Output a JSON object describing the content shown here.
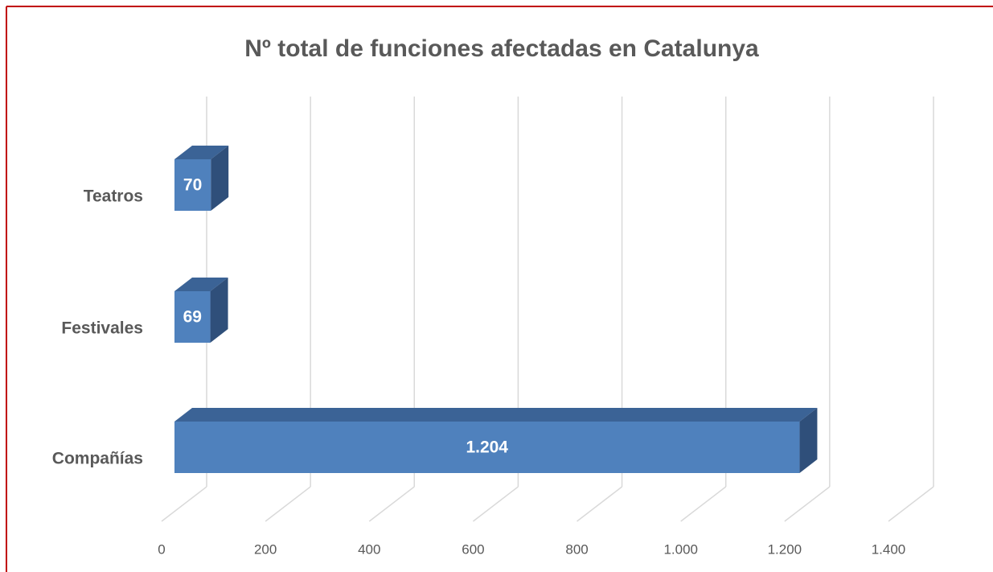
{
  "chart_data": {
    "type": "bar3d_horizontal",
    "title": "Nº total de funciones afectadas en Catalunya",
    "categories": [
      "Teatros",
      "Festivales",
      "Compañías"
    ],
    "values": [
      70,
      69,
      1204
    ],
    "value_labels": [
      "70",
      "69",
      "1.204"
    ],
    "color": "#4f81bd",
    "xlim": [
      0,
      1400
    ],
    "xticks": [
      0,
      200,
      400,
      600,
      800,
      {
        "value": 1000,
        "label": "1.000"
      },
      {
        "value": 1200,
        "label": "1.200"
      },
      {
        "value": 1400,
        "label": "1.400"
      }
    ],
    "grid": true
  }
}
